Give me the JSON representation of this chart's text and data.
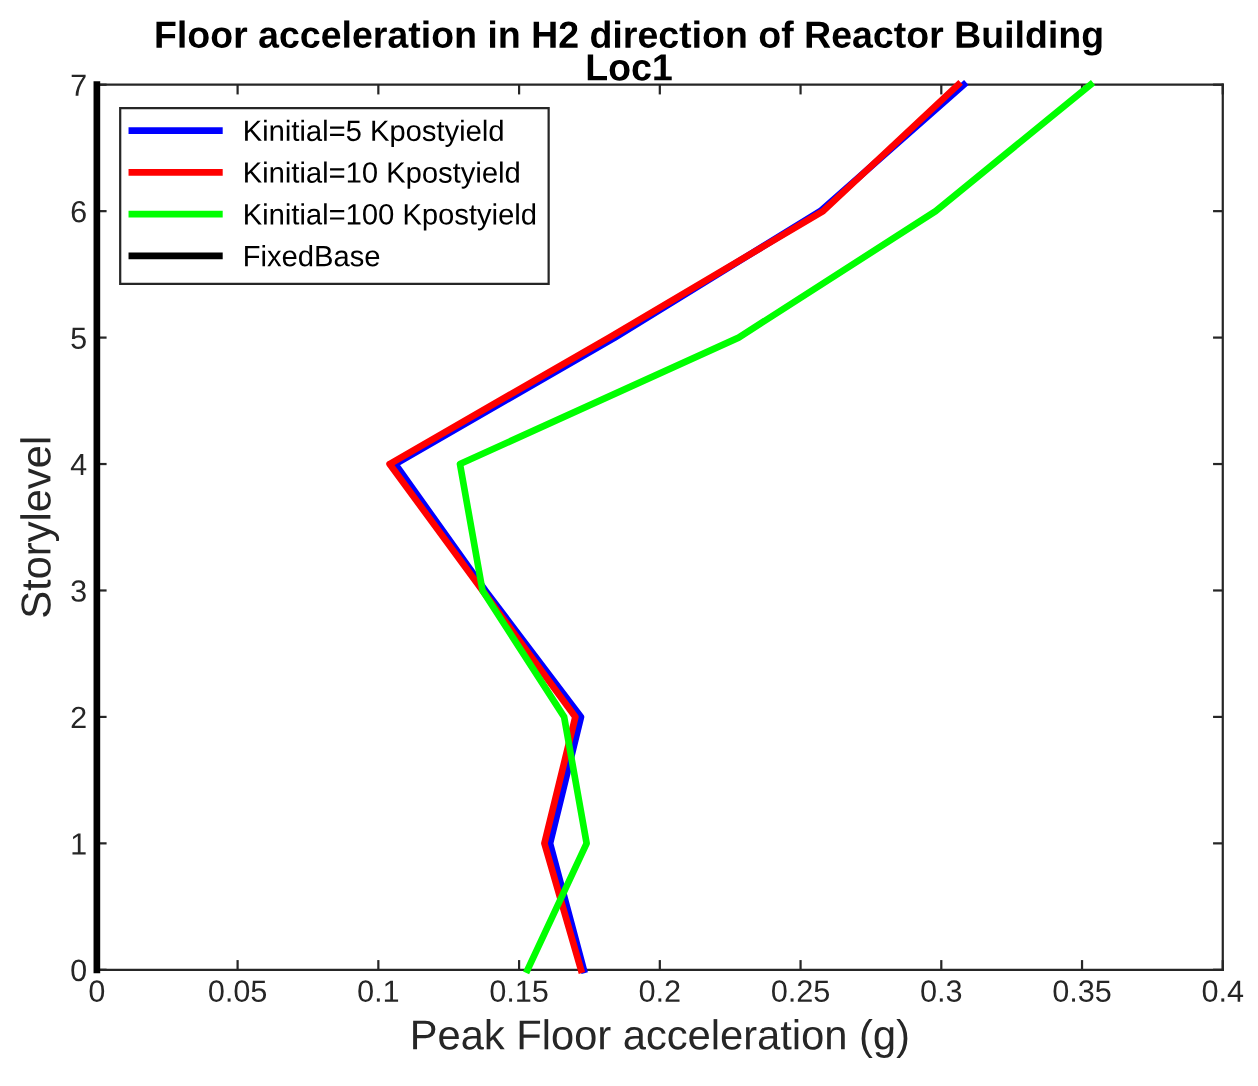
{
  "chart_data": {
    "type": "line",
    "title": "Floor acceleration in H2 direction of Reactor Building",
    "subtitle": "Loc1",
    "xlabel": "Peak Floor acceleration (g)",
    "ylabel": "Storylevel",
    "series": [
      {
        "name": "Kinitial=5 Kpostyield",
        "color": "#0000ff",
        "x": [
          0.173,
          0.161,
          0.172,
          0.138,
          0.106,
          0.184,
          0.257,
          0.308
        ],
        "values": [
          0,
          1,
          2,
          3,
          4,
          5,
          6,
          7
        ]
      },
      {
        "name": "Kinitial=10 Kpostyield",
        "color": "#ff0000",
        "x": [
          0.172,
          0.159,
          0.17,
          0.137,
          0.104,
          0.182,
          0.258,
          0.306
        ],
        "values": [
          0,
          1,
          2,
          3,
          4,
          5,
          6,
          7
        ]
      },
      {
        "name": "Kinitial=100 Kpostyield",
        "color": "#00ff00",
        "x": [
          0.153,
          0.174,
          0.166,
          0.137,
          0.129,
          0.228,
          0.298,
          0.353
        ],
        "values": [
          0,
          1,
          2,
          3,
          4,
          5,
          6,
          7
        ]
      },
      {
        "name": "FixedBase",
        "color": "#000000",
        "x": [
          0,
          0,
          0,
          0,
          0,
          0,
          0,
          0
        ],
        "values": [
          0,
          1,
          2,
          3,
          4,
          5,
          6,
          7
        ]
      }
    ],
    "xlim": [
      0,
      0.4
    ],
    "xticks": [
      0,
      0.05,
      0.1,
      0.15,
      0.2,
      0.25,
      0.3,
      0.35,
      0.4
    ],
    "ylim": [
      0,
      7
    ],
    "yticks": [
      0,
      1,
      2,
      3,
      4,
      5,
      6,
      7
    ],
    "legend": "top left",
    "grid": false,
    "marker": "none",
    "line_style": "solid"
  }
}
